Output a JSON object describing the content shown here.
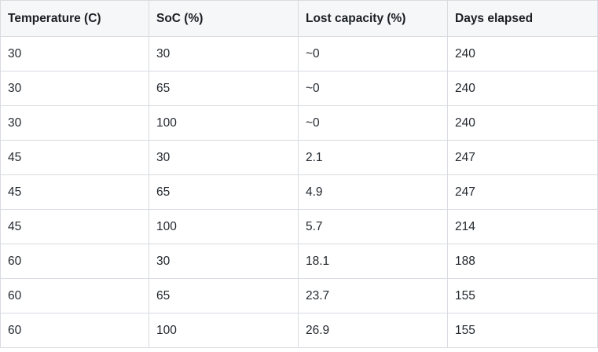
{
  "table": {
    "headers": [
      "Temperature (C)",
      "SoC (%)",
      "Lost capacity (%)",
      "Days elapsed"
    ],
    "rows": [
      [
        "30",
        "30",
        "~0",
        "240"
      ],
      [
        "30",
        "65",
        "~0",
        "240"
      ],
      [
        "30",
        "100",
        "~0",
        "240"
      ],
      [
        "45",
        "30",
        "2.1",
        "247"
      ],
      [
        "45",
        "65",
        "4.9",
        "247"
      ],
      [
        "45",
        "100",
        "5.7",
        "214"
      ],
      [
        "60",
        "30",
        "18.1",
        "188"
      ],
      [
        "60",
        "65",
        "23.7",
        "155"
      ],
      [
        "60",
        "100",
        "26.9",
        "155"
      ]
    ]
  },
  "colors": {
    "header_background": "#f6f7f9",
    "border": "#d8dbe0",
    "text": "#24292f"
  }
}
